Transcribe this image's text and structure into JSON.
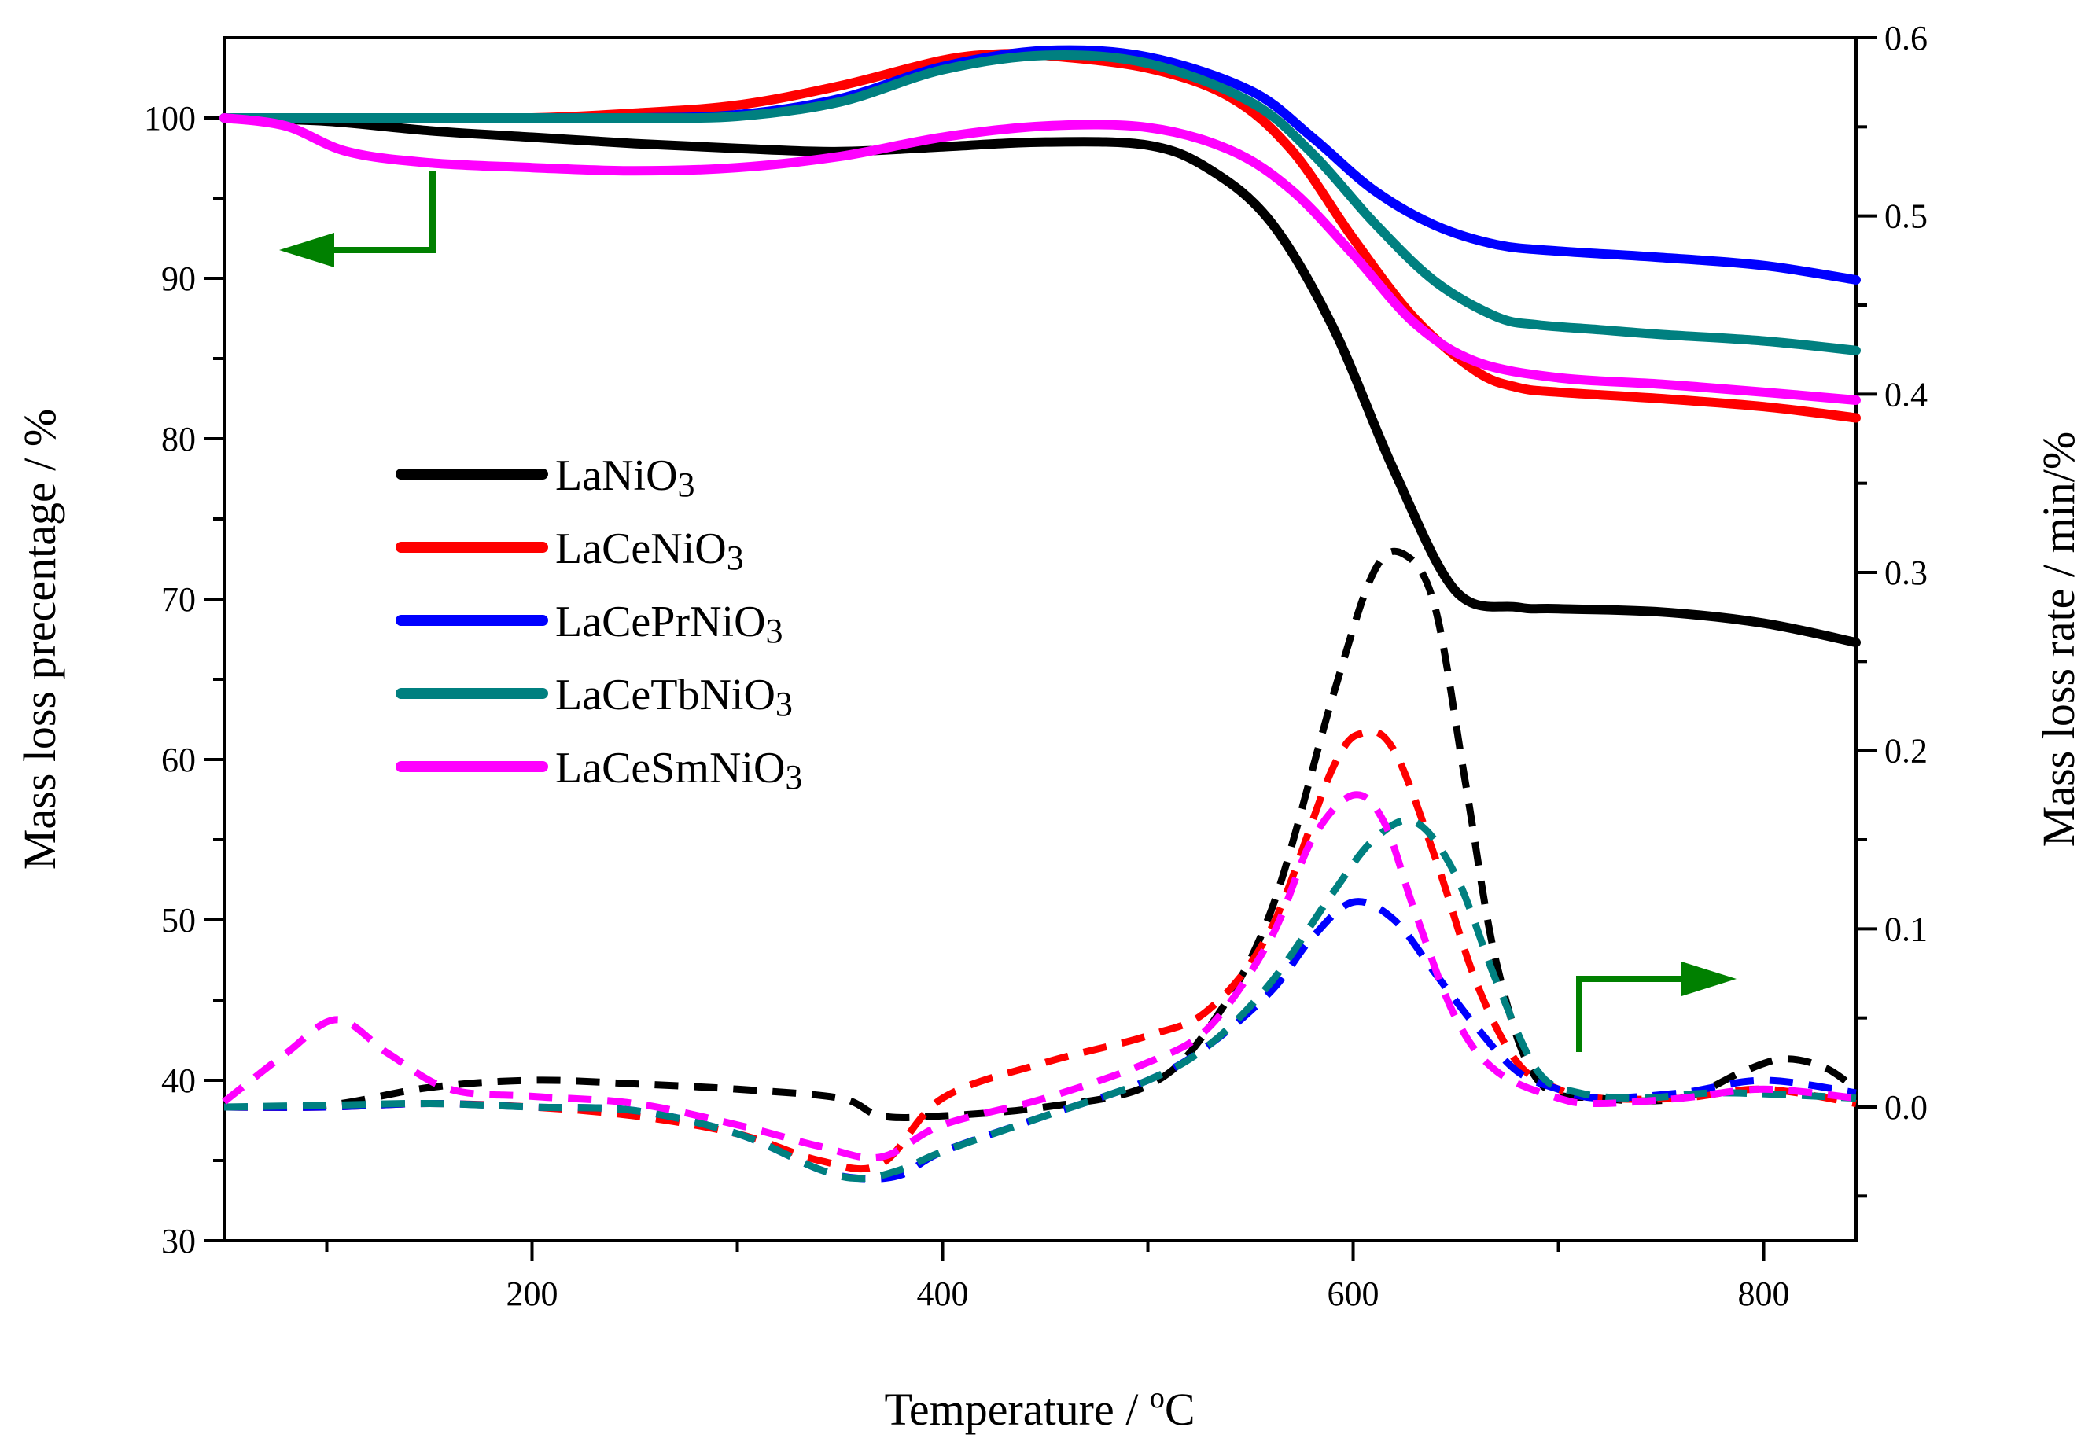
{
  "chart_data": {
    "type": "line",
    "xlabel": "Temperature / °C",
    "ylabel_left": "Mass loss precentage / %",
    "ylabel_right": "Mass loss rate / min/%",
    "xlim": [
      50,
      845
    ],
    "ylim_left": [
      30,
      105
    ],
    "ylim_right": [
      -0.075,
      0.6
    ],
    "x_ticks": [
      200,
      400,
      600,
      800
    ],
    "x_ticks_minor": [
      100,
      300,
      500,
      700
    ],
    "y_ticks_left": [
      30,
      40,
      50,
      60,
      70,
      80,
      90,
      100
    ],
    "y_ticks_right": [
      "0.0",
      "0.1",
      "0.2",
      "0.3",
      "0.4",
      "0.5",
      "0.6"
    ],
    "grid": false,
    "legend_position": "center-left",
    "colors": {
      "LaNiO3": "#000000",
      "LaCeNiO3": "#ff0000",
      "LaCePrNiO3": "#0000ff",
      "LaCeTbNiO3": "#008080",
      "LaCeSmNiO3": "#ff00ff",
      "arrow": "#008000"
    },
    "legend": [
      {
        "label": "LaNiO3",
        "sub_label": "3",
        "base": "LaNiO",
        "color": "#000000"
      },
      {
        "label": "LaCeNiO3",
        "sub_label": "3",
        "base": "LaCeNiO",
        "color": "#ff0000"
      },
      {
        "label": "LaCePrNiO3",
        "sub_label": "3",
        "base": "LaCePrNiO",
        "color": "#0000ff"
      },
      {
        "label": "LaCeTbNiO3",
        "sub_label": "3",
        "base": "LaCeTbNiO",
        "color": "#008080"
      },
      {
        "label": "LaCeSmNiO3",
        "sub_label": "3",
        "base": "LaCeSmNiO",
        "color": "#ff00ff"
      }
    ],
    "annotations": [
      {
        "type": "arrow",
        "points_to": "left-axis",
        "near_series": "mass loss"
      },
      {
        "type": "arrow",
        "points_to": "right-axis",
        "near_series": "mass loss rate"
      }
    ],
    "series_mass_loss": [
      {
        "name": "LaNiO3",
        "color": "#000000",
        "x": [
          50,
          100,
          150,
          200,
          250,
          300,
          350,
          400,
          450,
          500,
          530,
          560,
          590,
          620,
          650,
          680,
          700,
          750,
          800,
          845
        ],
        "y": [
          100,
          99.8,
          99.2,
          98.8,
          98.4,
          98.1,
          97.9,
          98.2,
          98.5,
          98.3,
          96.8,
          93.5,
          87,
          78,
          70.5,
          69.5,
          69.4,
          69.2,
          68.5,
          67.3
        ]
      },
      {
        "name": "LaCeNiO3",
        "color": "#ff0000",
        "x": [
          50,
          100,
          150,
          200,
          250,
          300,
          350,
          400,
          430,
          450,
          500,
          540,
          570,
          600,
          630,
          660,
          680,
          700,
          750,
          800,
          845
        ],
        "y": [
          100,
          100,
          100,
          100,
          100.3,
          100.8,
          102,
          103.6,
          104,
          103.9,
          103.1,
          101.3,
          98,
          92.5,
          87.5,
          84.2,
          83.2,
          82.9,
          82.5,
          82,
          81.3
        ]
      },
      {
        "name": "LaCePrNiO3",
        "color": "#0000ff",
        "x": [
          50,
          100,
          150,
          200,
          250,
          300,
          350,
          400,
          450,
          500,
          550,
          580,
          610,
          640,
          670,
          700,
          750,
          800,
          845
        ],
        "y": [
          100,
          100,
          100,
          100,
          100,
          100.2,
          101.2,
          103.2,
          104.2,
          103.8,
          101.7,
          98.8,
          95.5,
          93.3,
          92.1,
          91.7,
          91.3,
          90.8,
          89.9
        ]
      },
      {
        "name": "LaCeTbNiO3",
        "color": "#008080",
        "x": [
          50,
          100,
          150,
          200,
          250,
          300,
          350,
          400,
          450,
          500,
          550,
          580,
          610,
          640,
          670,
          690,
          720,
          750,
          800,
          845
        ],
        "y": [
          100,
          100,
          100,
          100,
          100,
          100.1,
          101,
          103,
          103.9,
          103.4,
          101,
          97.8,
          93.5,
          89.8,
          87.6,
          87.1,
          86.8,
          86.5,
          86.1,
          85.5
        ]
      },
      {
        "name": "LaCeSmNiO3",
        "color": "#ff00ff",
        "x": [
          50,
          80,
          110,
          150,
          200,
          250,
          300,
          350,
          400,
          450,
          500,
          540,
          570,
          600,
          630,
          660,
          700,
          750,
          800,
          845
        ],
        "y": [
          100,
          99.5,
          97.9,
          97.2,
          96.9,
          96.7,
          96.9,
          97.6,
          98.8,
          99.5,
          99.4,
          98,
          95.5,
          91.5,
          87.2,
          84.8,
          83.8,
          83.4,
          82.9,
          82.4
        ]
      }
    ],
    "series_mass_loss_rate": [
      {
        "name": "LaNiO3",
        "color": "#000000",
        "x": [
          50,
          100,
          150,
          200,
          250,
          300,
          350,
          370,
          400,
          450,
          500,
          530,
          560,
          590,
          610,
          625,
          640,
          655,
          670,
          690,
          720,
          760,
          790,
          810,
          830,
          845
        ],
        "y": [
          0.0,
          0.001,
          0.011,
          0.015,
          0.013,
          0.01,
          0.005,
          -0.005,
          -0.005,
          0.0,
          0.012,
          0.045,
          0.11,
          0.23,
          0.3,
          0.31,
          0.28,
          0.18,
          0.08,
          0.015,
          0.005,
          0.005,
          0.02,
          0.027,
          0.022,
          0.01
        ]
      },
      {
        "name": "LaCeNiO3",
        "color": "#ff0000",
        "x": [
          50,
          100,
          150,
          200,
          250,
          300,
          340,
          370,
          400,
          450,
          500,
          530,
          560,
          590,
          605,
          620,
          640,
          660,
          680,
          700,
          720,
          760,
          800,
          845
        ],
        "y": [
          0.0,
          0.0,
          0.002,
          0.0,
          -0.005,
          -0.015,
          -0.03,
          -0.032,
          0.005,
          0.025,
          0.04,
          0.055,
          0.1,
          0.19,
          0.21,
          0.2,
          0.14,
          0.07,
          0.025,
          0.01,
          0.005,
          0.005,
          0.01,
          0.002
        ]
      },
      {
        "name": "LaCePrNiO3",
        "color": "#0000ff",
        "x": [
          50,
          100,
          150,
          200,
          250,
          300,
          340,
          360,
          380,
          400,
          450,
          500,
          530,
          560,
          580,
          600,
          620,
          640,
          660,
          680,
          700,
          720,
          760,
          800,
          845
        ],
        "y": [
          0.0,
          0.0,
          0.002,
          0.0,
          -0.002,
          -0.015,
          -0.035,
          -0.04,
          -0.038,
          -0.025,
          -0.005,
          0.015,
          0.035,
          0.065,
          0.095,
          0.115,
          0.105,
          0.075,
          0.045,
          0.02,
          0.01,
          0.005,
          0.008,
          0.015,
          0.008
        ]
      },
      {
        "name": "LaCeTbNiO3",
        "color": "#008080",
        "x": [
          50,
          100,
          150,
          200,
          250,
          300,
          340,
          360,
          380,
          400,
          450,
          500,
          530,
          560,
          590,
          610,
          630,
          650,
          670,
          690,
          710,
          740,
          780,
          845
        ],
        "y": [
          0.0,
          0.001,
          0.002,
          0.0,
          -0.002,
          -0.015,
          -0.035,
          -0.04,
          -0.035,
          -0.025,
          -0.005,
          0.015,
          0.035,
          0.07,
          0.12,
          0.15,
          0.16,
          0.13,
          0.07,
          0.02,
          0.008,
          0.005,
          0.008,
          0.005
        ]
      },
      {
        "name": "LaCeSmNiO3",
        "color": "#ff00ff",
        "x": [
          50,
          80,
          105,
          130,
          160,
          200,
          250,
          300,
          340,
          370,
          400,
          450,
          500,
          530,
          560,
          580,
          600,
          615,
          630,
          650,
          670,
          700,
          720,
          760,
          800,
          845
        ],
        "y": [
          0.003,
          0.03,
          0.049,
          0.03,
          0.01,
          0.006,
          0.002,
          -0.01,
          -0.022,
          -0.028,
          -0.01,
          0.005,
          0.025,
          0.045,
          0.095,
          0.15,
          0.175,
          0.16,
          0.11,
          0.05,
          0.02,
          0.005,
          0.002,
          0.005,
          0.01,
          0.005
        ]
      }
    ]
  }
}
